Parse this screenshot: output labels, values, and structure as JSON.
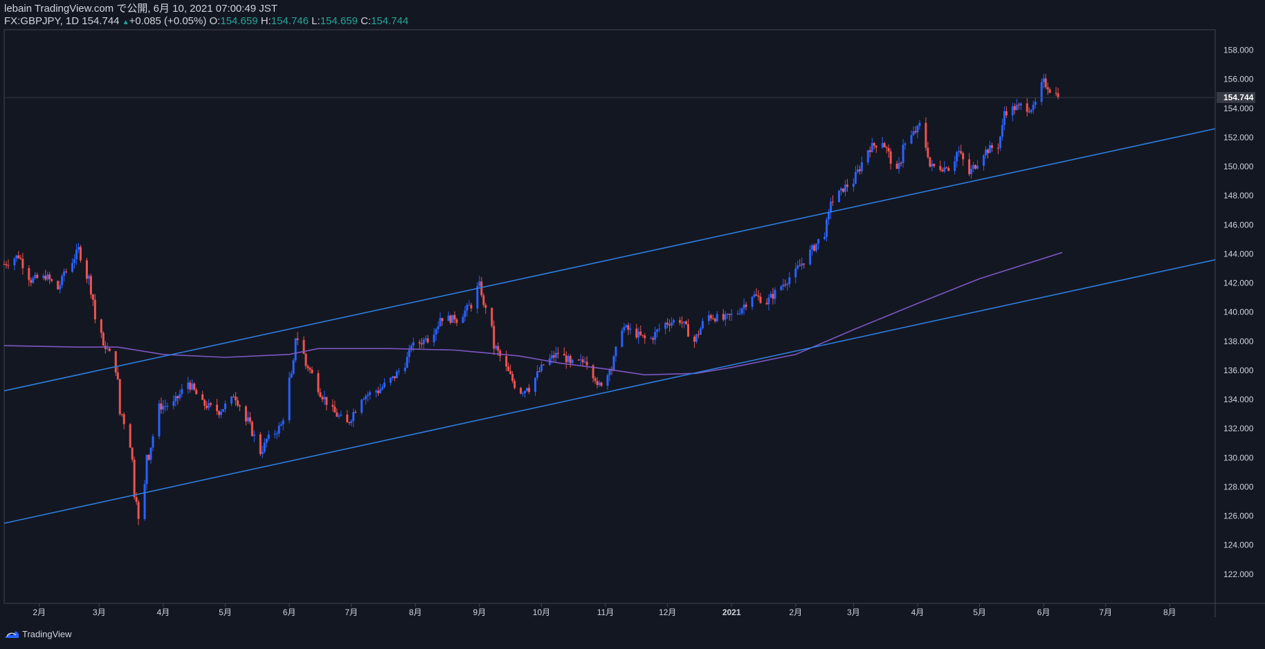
{
  "header": {
    "line1": "lebain TradingView.com で公開, 6月 10, 2021 07:00:49 JST",
    "symbol": "FX:GBPJPY, 1D",
    "last": "154.744",
    "change": "+0.085 (+0.05%)",
    "o_label": "O:",
    "o_value": "154.659",
    "h_label": "H:",
    "h_value": "154.746",
    "l_label": "L:",
    "l_value": "154.659",
    "c_label": "C:",
    "c_value": "154.744"
  },
  "footer": {
    "brand": "TradingView"
  },
  "colors": {
    "background": "#131722",
    "up": "#2962ff",
    "down": "#ef5350",
    "trendline": "#2e7ee0",
    "ma": "#7e57c2",
    "text": "#d1d4dc",
    "grid_border": "#434651"
  },
  "chart_data": {
    "type": "candlestick",
    "symbol": "FX:GBPJPY",
    "timeframe": "1D",
    "ylim": [
      120.0,
      159.4
    ],
    "y_ticks": [
      "122.000",
      "124.000",
      "126.000",
      "128.000",
      "130.000",
      "132.000",
      "134.000",
      "136.000",
      "138.000",
      "140.000",
      "142.000",
      "144.000",
      "146.000",
      "148.000",
      "150.000",
      "152.000",
      "154.000",
      "156.000",
      "158.000"
    ],
    "x_range": [
      "2020-01-15",
      "2021-08-23"
    ],
    "x_ticks": [
      {
        "label": "2月",
        "date": "2020-02-01"
      },
      {
        "label": "3月",
        "date": "2020-03-01"
      },
      {
        "label": "4月",
        "date": "2020-04-01"
      },
      {
        "label": "5月",
        "date": "2020-05-01"
      },
      {
        "label": "6月",
        "date": "2020-06-01"
      },
      {
        "label": "7月",
        "date": "2020-07-01"
      },
      {
        "label": "8月",
        "date": "2020-08-01"
      },
      {
        "label": "9月",
        "date": "2020-09-01"
      },
      {
        "label": "10月",
        "date": "2020-10-01"
      },
      {
        "label": "11月",
        "date": "2020-11-01"
      },
      {
        "label": "12月",
        "date": "2020-12-01"
      },
      {
        "label": "2021",
        "date": "2021-01-01"
      },
      {
        "label": "2月",
        "date": "2021-02-01"
      },
      {
        "label": "3月",
        "date": "2021-03-01"
      },
      {
        "label": "4月",
        "date": "2021-04-01"
      },
      {
        "label": "5月",
        "date": "2021-05-01"
      },
      {
        "label": "6月",
        "date": "2021-06-01"
      },
      {
        "label": "7月",
        "date": "2021-07-01"
      },
      {
        "label": "8月",
        "date": "2021-08-01"
      }
    ],
    "last_price": "154.744",
    "price_path": [
      {
        "date": "2020-01-15",
        "close": 143.3
      },
      {
        "date": "2020-01-22",
        "close": 143.9
      },
      {
        "date": "2020-01-28",
        "close": 142.2
      },
      {
        "date": "2020-02-04",
        "close": 142.5
      },
      {
        "date": "2020-02-10",
        "close": 141.6
      },
      {
        "date": "2020-02-14",
        "close": 142.8
      },
      {
        "date": "2020-02-20",
        "close": 144.3
      },
      {
        "date": "2020-02-25",
        "close": 142.3
      },
      {
        "date": "2020-02-29",
        "close": 139.5
      },
      {
        "date": "2020-03-04",
        "close": 137.7
      },
      {
        "date": "2020-03-09",
        "close": 136.2
      },
      {
        "date": "2020-03-12",
        "close": 133.0
      },
      {
        "date": "2020-03-16",
        "close": 131.0
      },
      {
        "date": "2020-03-19",
        "close": 127.3
      },
      {
        "date": "2020-03-21",
        "close": 125.8
      },
      {
        "date": "2020-03-25",
        "close": 130.2
      },
      {
        "date": "2020-03-30",
        "close": 133.5
      },
      {
        "date": "2020-04-06",
        "close": 133.7
      },
      {
        "date": "2020-04-13",
        "close": 135.2
      },
      {
        "date": "2020-04-20",
        "close": 133.7
      },
      {
        "date": "2020-04-28",
        "close": 133.2
      },
      {
        "date": "2020-05-06",
        "close": 134.2
      },
      {
        "date": "2020-05-12",
        "close": 132.5
      },
      {
        "date": "2020-05-18",
        "close": 130.4
      },
      {
        "date": "2020-05-22",
        "close": 131.3
      },
      {
        "date": "2020-05-28",
        "close": 132.2
      },
      {
        "date": "2020-06-02",
        "close": 135.5
      },
      {
        "date": "2020-06-05",
        "close": 138.2
      },
      {
        "date": "2020-06-10",
        "close": 136.3
      },
      {
        "date": "2020-06-16",
        "close": 134.5
      },
      {
        "date": "2020-06-22",
        "close": 133.2
      },
      {
        "date": "2020-06-29",
        "close": 132.3
      },
      {
        "date": "2020-07-06",
        "close": 134.2
      },
      {
        "date": "2020-07-14",
        "close": 134.6
      },
      {
        "date": "2020-07-22",
        "close": 135.6
      },
      {
        "date": "2020-07-27",
        "close": 136.5
      },
      {
        "date": "2020-07-31",
        "close": 137.7
      },
      {
        "date": "2020-08-07",
        "close": 138.2
      },
      {
        "date": "2020-08-14",
        "close": 139.6
      },
      {
        "date": "2020-08-21",
        "close": 139.5
      },
      {
        "date": "2020-08-28",
        "close": 140.5
      },
      {
        "date": "2020-09-01",
        "close": 141.8
      },
      {
        "date": "2020-09-04",
        "close": 140.5
      },
      {
        "date": "2020-09-09",
        "close": 137.5
      },
      {
        "date": "2020-09-14",
        "close": 136.1
      },
      {
        "date": "2020-09-20",
        "close": 134.5
      },
      {
        "date": "2020-09-25",
        "close": 134.8
      },
      {
        "date": "2020-10-02",
        "close": 136.4
      },
      {
        "date": "2020-10-09",
        "close": 137.2
      },
      {
        "date": "2020-10-16",
        "close": 136.5
      },
      {
        "date": "2020-10-23",
        "close": 136.6
      },
      {
        "date": "2020-10-29",
        "close": 135.0
      },
      {
        "date": "2020-11-04",
        "close": 136.1
      },
      {
        "date": "2020-11-09",
        "close": 139.0
      },
      {
        "date": "2020-11-16",
        "close": 138.5
      },
      {
        "date": "2020-11-22",
        "close": 138.0
      },
      {
        "date": "2020-11-29",
        "close": 139.2
      },
      {
        "date": "2020-12-07",
        "close": 139.5
      },
      {
        "date": "2020-12-14",
        "close": 138.0
      },
      {
        "date": "2020-12-20",
        "close": 139.8
      },
      {
        "date": "2020-12-28",
        "close": 139.5
      },
      {
        "date": "2021-01-04",
        "close": 140.0
      },
      {
        "date": "2021-01-11",
        "close": 141.2
      },
      {
        "date": "2021-01-18",
        "close": 140.7
      },
      {
        "date": "2021-01-25",
        "close": 141.8
      },
      {
        "date": "2021-02-02",
        "close": 143.0
      },
      {
        "date": "2021-02-09",
        "close": 144.3
      },
      {
        "date": "2021-02-15",
        "close": 145.5
      },
      {
        "date": "2021-02-19",
        "close": 147.6
      },
      {
        "date": "2021-02-24",
        "close": 148.5
      },
      {
        "date": "2021-03-01",
        "close": 149.0
      },
      {
        "date": "2021-03-08",
        "close": 151.2
      },
      {
        "date": "2021-03-15",
        "close": 151.8
      },
      {
        "date": "2021-03-22",
        "close": 149.5
      },
      {
        "date": "2021-03-26",
        "close": 151.5
      },
      {
        "date": "2021-04-02",
        "close": 152.8
      },
      {
        "date": "2021-04-08",
        "close": 150.0
      },
      {
        "date": "2021-04-16",
        "close": 149.9
      },
      {
        "date": "2021-04-21",
        "close": 151.0
      },
      {
        "date": "2021-04-26",
        "close": 149.5
      },
      {
        "date": "2021-05-03",
        "close": 151.0
      },
      {
        "date": "2021-05-10",
        "close": 151.5
      },
      {
        "date": "2021-05-14",
        "close": 153.8
      },
      {
        "date": "2021-05-21",
        "close": 154.2
      },
      {
        "date": "2021-05-27",
        "close": 153.9
      },
      {
        "date": "2021-06-01",
        "close": 155.8
      },
      {
        "date": "2021-06-04",
        "close": 155.3
      },
      {
        "date": "2021-06-09",
        "close": 154.744
      }
    ],
    "ma_path": [
      {
        "date": "2020-01-15",
        "value": 137.7
      },
      {
        "date": "2020-02-20",
        "value": 137.6
      },
      {
        "date": "2020-03-10",
        "value": 137.6
      },
      {
        "date": "2020-04-01",
        "value": 137.1
      },
      {
        "date": "2020-05-01",
        "value": 136.9
      },
      {
        "date": "2020-06-01",
        "value": 137.1
      },
      {
        "date": "2020-06-15",
        "value": 137.5
      },
      {
        "date": "2020-07-20",
        "value": 137.5
      },
      {
        "date": "2020-08-20",
        "value": 137.4
      },
      {
        "date": "2020-09-20",
        "value": 137.0
      },
      {
        "date": "2020-10-10",
        "value": 136.5
      },
      {
        "date": "2020-11-01",
        "value": 136.1
      },
      {
        "date": "2020-11-20",
        "value": 135.7
      },
      {
        "date": "2020-12-15",
        "value": 135.8
      },
      {
        "date": "2021-01-01",
        "value": 136.2
      },
      {
        "date": "2021-02-01",
        "value": 137.1
      },
      {
        "date": "2021-03-01",
        "value": 138.8
      },
      {
        "date": "2021-04-01",
        "value": 140.6
      },
      {
        "date": "2021-05-01",
        "value": 142.3
      },
      {
        "date": "2021-06-10",
        "value": 144.1
      }
    ],
    "trendlines": [
      {
        "from": {
          "date": "2020-01-15",
          "price": 134.6
        },
        "to": {
          "date": "2021-08-23",
          "price": 152.6
        }
      },
      {
        "from": {
          "date": "2020-01-15",
          "price": 125.5
        },
        "to": {
          "date": "2021-08-23",
          "price": 143.6
        }
      }
    ]
  }
}
